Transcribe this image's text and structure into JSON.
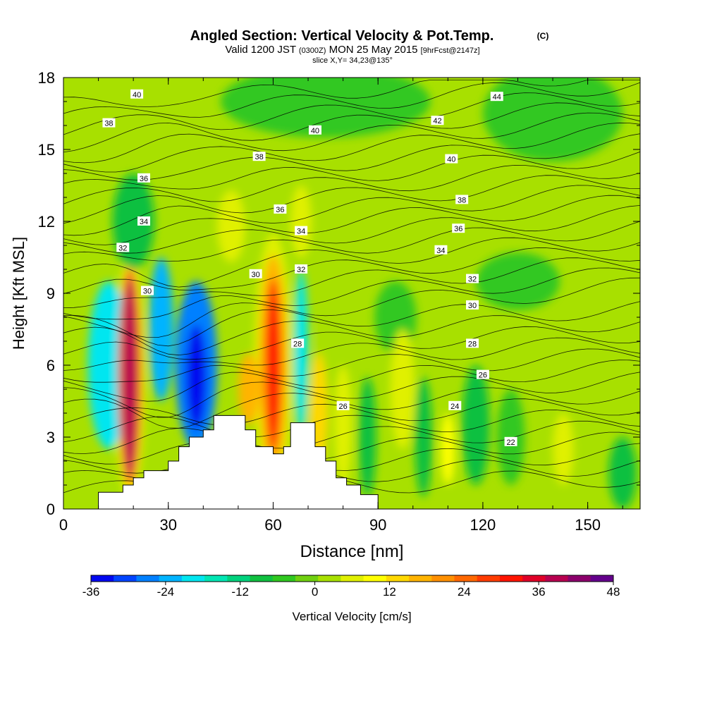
{
  "chart_data": {
    "type": "heatmap",
    "title": "Angled Section: Vertical Velocity & Pot.Temp.",
    "title_mark": "(C)",
    "subtitle_parts": [
      "Valid 1200 JST",
      "(0300Z)",
      "MON 25 May 2015",
      "[9hrFcst@2147z]"
    ],
    "subtitle2": "slice X,Y= 34,23@135°",
    "xlabel": "Distance [nm]",
    "ylabel": "Height [Kft MSL]",
    "xlim": [
      0,
      165
    ],
    "ylim": [
      0,
      18
    ],
    "xticks": [
      0,
      30,
      60,
      90,
      120,
      150
    ],
    "yticks": [
      0,
      3,
      6,
      9,
      12,
      15,
      18
    ],
    "colorbar": {
      "label": "Vertical Velocity [cm/s]",
      "ticks": [
        -36,
        -24,
        -12,
        0,
        12,
        24,
        36,
        48
      ],
      "range": [
        -36,
        48
      ],
      "step": 4,
      "colors": [
        "#0008f0",
        "#0044ff",
        "#0080ff",
        "#00b4ff",
        "#00e6f0",
        "#00e6b4",
        "#00d27d",
        "#10c040",
        "#30c820",
        "#70d010",
        "#a8e000",
        "#e0f000",
        "#ffff00",
        "#ffd800",
        "#ffb400",
        "#ff9000",
        "#ff6800",
        "#ff3c00",
        "#ff1400",
        "#e00028",
        "#b80050",
        "#8c006c",
        "#64008c"
      ]
    },
    "terrain": [
      [
        10,
        0.7
      ],
      [
        17,
        0.7
      ],
      [
        17,
        1.0
      ],
      [
        20,
        1.0
      ],
      [
        20,
        1.3
      ],
      [
        23,
        1.3
      ],
      [
        23,
        1.6
      ],
      [
        30,
        1.6
      ],
      [
        30,
        2.0
      ],
      [
        33,
        2.0
      ],
      [
        33,
        2.6
      ],
      [
        36,
        2.6
      ],
      [
        36,
        3.0
      ],
      [
        40,
        3.0
      ],
      [
        40,
        3.3
      ],
      [
        43,
        3.3
      ],
      [
        43,
        3.9
      ],
      [
        52,
        3.9
      ],
      [
        52,
        3.3
      ],
      [
        55,
        3.3
      ],
      [
        55,
        2.6
      ],
      [
        60,
        2.6
      ],
      [
        60,
        2.3
      ],
      [
        63,
        2.3
      ],
      [
        63,
        2.6
      ],
      [
        65,
        2.6
      ],
      [
        65,
        3.6
      ],
      [
        72,
        3.6
      ],
      [
        72,
        2.6
      ],
      [
        75,
        2.6
      ],
      [
        75,
        2.0
      ],
      [
        78,
        2.0
      ],
      [
        78,
        1.3
      ],
      [
        81,
        1.3
      ],
      [
        81,
        1.0
      ],
      [
        85,
        1.0
      ],
      [
        85,
        0.6
      ],
      [
        90,
        0.6
      ],
      [
        90,
        0
      ]
    ],
    "velocity_cells": [
      {
        "x": 19,
        "y": 5.5,
        "rx": 2.2,
        "ry": 4.2,
        "value": 44
      },
      {
        "x": 19,
        "y": 5.5,
        "rx": 3.4,
        "ry": 4.6,
        "value": 30
      },
      {
        "x": 19,
        "y": 5.5,
        "rx": 4.2,
        "ry": 5.0,
        "value": 14
      },
      {
        "x": 13,
        "y": 6.0,
        "rx": 6,
        "ry": 3.5,
        "value": -20
      },
      {
        "x": 28,
        "y": 7.5,
        "rx": 3.5,
        "ry": 3.0,
        "value": -24
      },
      {
        "x": 38,
        "y": 5.5,
        "rx": 3.0,
        "ry": 2.2,
        "value": -36
      },
      {
        "x": 38,
        "y": 6.0,
        "rx": 6,
        "ry": 3.5,
        "value": -28
      },
      {
        "x": 60,
        "y": 6.0,
        "rx": 2.3,
        "ry": 3.6,
        "value": 36
      },
      {
        "x": 60,
        "y": 6.0,
        "rx": 4.0,
        "ry": 4.6,
        "value": 22
      },
      {
        "x": 60,
        "y": 6.0,
        "rx": 5.5,
        "ry": 5.5,
        "value": 8
      },
      {
        "x": 53,
        "y": 5.0,
        "rx": 3,
        "ry": 1.5,
        "value": 20
      },
      {
        "x": 68,
        "y": 6.5,
        "rx": 2.0,
        "ry": 3.5,
        "value": -20
      },
      {
        "x": 73,
        "y": 4.0,
        "rx": 2.5,
        "ry": 2.5,
        "value": 16
      },
      {
        "x": 75,
        "y": 5.5,
        "rx": 3.0,
        "ry": 2.5,
        "value": 6
      },
      {
        "x": 20,
        "y": 12.0,
        "rx": 6,
        "ry": 2.0,
        "value": -8
      },
      {
        "x": 48,
        "y": 11.8,
        "rx": 4,
        "ry": 1.5,
        "value": 8
      },
      {
        "x": 68,
        "y": 12.0,
        "rx": 3,
        "ry": 1.5,
        "value": 8
      },
      {
        "x": 97,
        "y": 5.0,
        "rx": 3.5,
        "ry": 2.5,
        "value": 10
      },
      {
        "x": 80,
        "y": 3.5,
        "rx": 2.5,
        "ry": 2.5,
        "value": 8
      },
      {
        "x": 110,
        "y": 2.5,
        "rx": 2,
        "ry": 1.5,
        "value": 14
      },
      {
        "x": 143,
        "y": 2.5,
        "rx": 3,
        "ry": 1.5,
        "value": 8
      },
      {
        "x": 87,
        "y": 3.0,
        "rx": 2.5,
        "ry": 2.5,
        "value": -6
      },
      {
        "x": 103,
        "y": 3.0,
        "rx": 2.5,
        "ry": 2.5,
        "value": -6
      },
      {
        "x": 118,
        "y": 3.5,
        "rx": 4,
        "ry": 2.5,
        "value": -6
      },
      {
        "x": 128,
        "y": 3.0,
        "rx": 4,
        "ry": 2.0,
        "value": -4
      },
      {
        "x": 160,
        "y": 1.5,
        "rx": 4,
        "ry": 1.5,
        "value": -6
      },
      {
        "x": 75,
        "y": 17,
        "rx": 30,
        "ry": 1.5,
        "value": -4
      },
      {
        "x": 140,
        "y": 16.5,
        "rx": 20,
        "ry": 2.0,
        "value": -4
      },
      {
        "x": 130,
        "y": 9.5,
        "rx": 12,
        "ry": 1.2,
        "value": -4
      },
      {
        "x": 95,
        "y": 8.0,
        "rx": 6,
        "ry": 1.5,
        "value": -4
      }
    ],
    "contour_labels": [
      {
        "x": 21,
        "y": 17.3,
        "label": "40"
      },
      {
        "x": 13,
        "y": 16.1,
        "label": "38"
      },
      {
        "x": 72,
        "y": 15.8,
        "label": "40"
      },
      {
        "x": 56,
        "y": 14.7,
        "label": "38"
      },
      {
        "x": 23,
        "y": 13.8,
        "label": "36"
      },
      {
        "x": 62,
        "y": 12.5,
        "label": "36"
      },
      {
        "x": 23,
        "y": 12.0,
        "label": "34"
      },
      {
        "x": 68,
        "y": 11.6,
        "label": "34"
      },
      {
        "x": 17,
        "y": 10.9,
        "label": "32"
      },
      {
        "x": 68,
        "y": 10.0,
        "label": "32"
      },
      {
        "x": 55,
        "y": 9.8,
        "label": "30"
      },
      {
        "x": 24,
        "y": 9.1,
        "label": "30"
      },
      {
        "x": 67,
        "y": 6.9,
        "label": "28"
      },
      {
        "x": 80,
        "y": 4.3,
        "label": "26"
      },
      {
        "x": 124,
        "y": 17.2,
        "label": "44"
      },
      {
        "x": 107,
        "y": 16.2,
        "label": "42"
      },
      {
        "x": 111,
        "y": 14.6,
        "label": "40"
      },
      {
        "x": 114,
        "y": 12.9,
        "label": "38"
      },
      {
        "x": 113,
        "y": 11.7,
        "label": "36"
      },
      {
        "x": 108,
        "y": 10.8,
        "label": "34"
      },
      {
        "x": 117,
        "y": 9.6,
        "label": "32"
      },
      {
        "x": 117,
        "y": 8.5,
        "label": "30"
      },
      {
        "x": 117,
        "y": 6.9,
        "label": "28"
      },
      {
        "x": 120,
        "y": 5.6,
        "label": "26"
      },
      {
        "x": 112,
        "y": 4.3,
        "label": "24"
      },
      {
        "x": 128,
        "y": 2.8,
        "label": "22"
      }
    ]
  }
}
